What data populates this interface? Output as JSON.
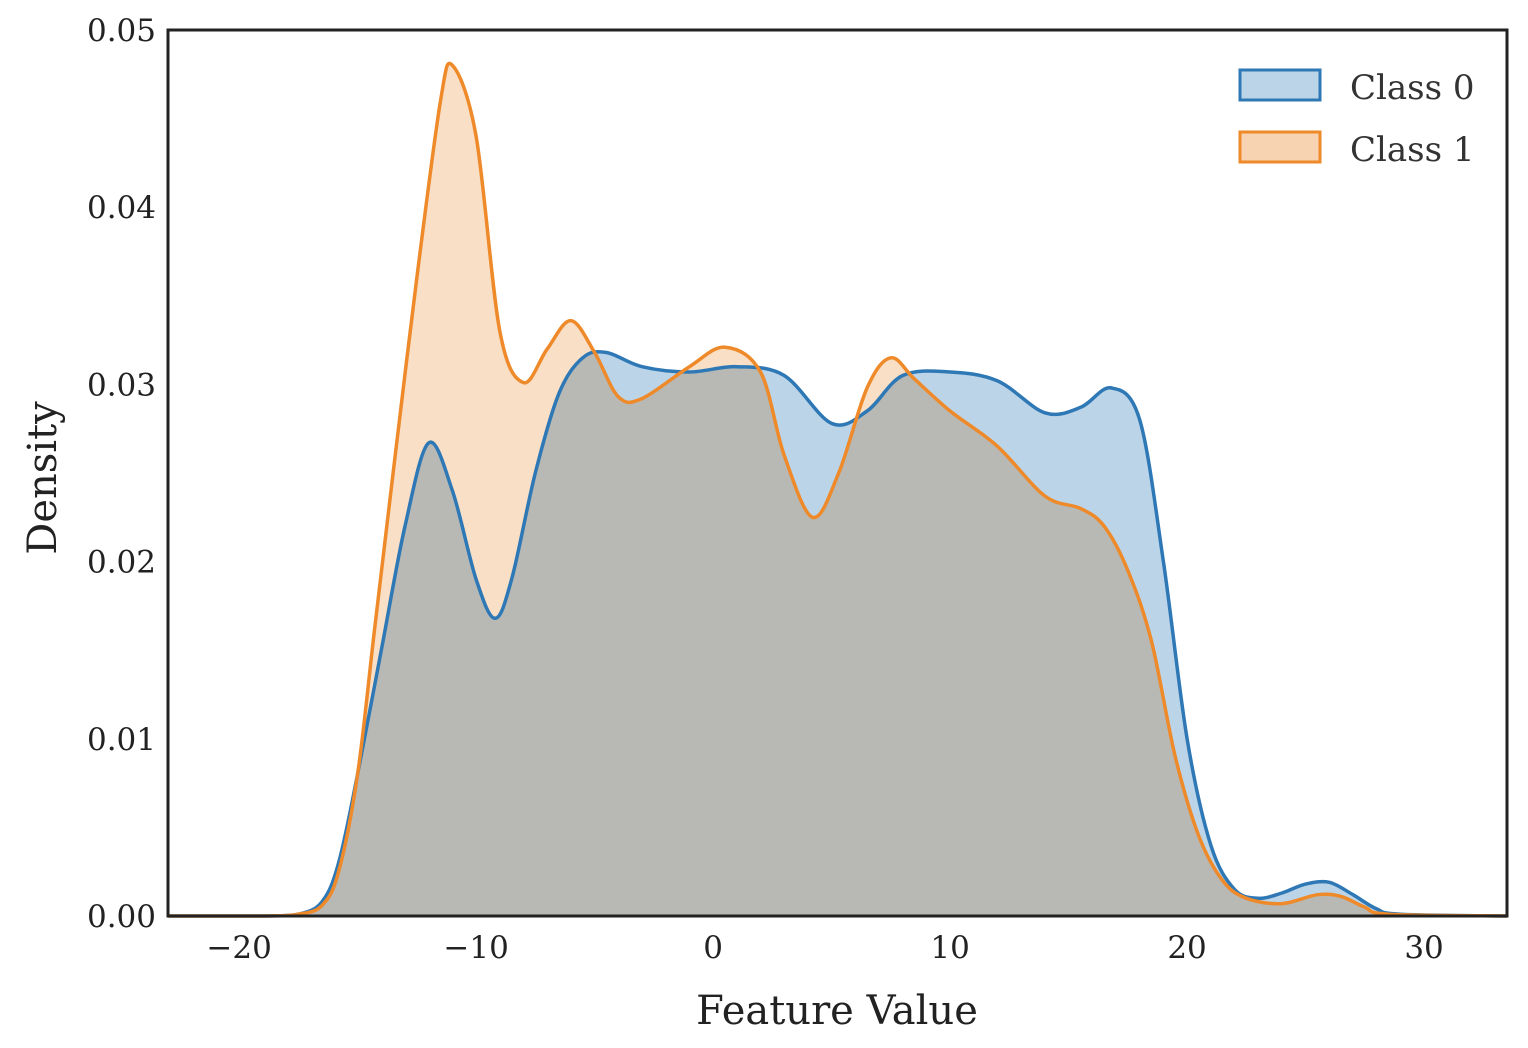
{
  "chart_data": {
    "type": "area",
    "title": "",
    "xlabel": "Feature Value",
    "ylabel": "Density",
    "xlim": [
      -23,
      33.5
    ],
    "ylim": [
      0,
      0.05
    ],
    "xticks": [
      -20,
      -10,
      0,
      10,
      20,
      30
    ],
    "xtick_labels": [
      "−20",
      "−10",
      "0",
      "10",
      "20",
      "30"
    ],
    "yticks": [
      0,
      0.01,
      0.02,
      0.03,
      0.04,
      0.05
    ],
    "ytick_labels": [
      "0.00",
      "0.01",
      "0.02",
      "0.03",
      "0.04",
      "0.05"
    ],
    "grid": false,
    "legend": {
      "position": "top-right"
    },
    "series": [
      {
        "name": "Class 0",
        "line_color": "#2e78b5",
        "fill_color": "#bcd4e8",
        "points": [
          [
            -23,
            0
          ],
          [
            -19,
            0
          ],
          [
            -17.5,
            0.0001
          ],
          [
            -16.5,
            0.0008
          ],
          [
            -15.8,
            0.003
          ],
          [
            -15,
            0.008
          ],
          [
            -14,
            0.015
          ],
          [
            -13,
            0.022
          ],
          [
            -12,
            0.0267
          ],
          [
            -11,
            0.024
          ],
          [
            -10,
            0.019
          ],
          [
            -9.2,
            0.0168
          ],
          [
            -8.5,
            0.019
          ],
          [
            -7.5,
            0.025
          ],
          [
            -6.5,
            0.0295
          ],
          [
            -5.5,
            0.0315
          ],
          [
            -4.5,
            0.0318
          ],
          [
            -3,
            0.031
          ],
          [
            -1,
            0.0307
          ],
          [
            1,
            0.031
          ],
          [
            3,
            0.0305
          ],
          [
            5,
            0.0278
          ],
          [
            6.5,
            0.0285
          ],
          [
            8,
            0.0305
          ],
          [
            10,
            0.0307
          ],
          [
            12,
            0.0302
          ],
          [
            14,
            0.0284
          ],
          [
            15.5,
            0.0287
          ],
          [
            16.8,
            0.0298
          ],
          [
            18,
            0.028
          ],
          [
            19,
            0.02
          ],
          [
            20,
            0.01
          ],
          [
            21,
            0.004
          ],
          [
            22,
            0.0015
          ],
          [
            23,
            0.001
          ],
          [
            24,
            0.0013
          ],
          [
            25,
            0.0018
          ],
          [
            26,
            0.0019
          ],
          [
            27,
            0.0012
          ],
          [
            28,
            0.0004
          ],
          [
            29,
            0.0001
          ],
          [
            33.5,
            0
          ]
        ]
      },
      {
        "name": "Class 1",
        "line_color": "#ee8a2a",
        "fill_color": "#f8d3b2",
        "points": [
          [
            -23,
            0
          ],
          [
            -19,
            0
          ],
          [
            -17.5,
            0.0001
          ],
          [
            -16.5,
            0.0006
          ],
          [
            -15.8,
            0.0025
          ],
          [
            -15,
            0.008
          ],
          [
            -14.3,
            0.016
          ],
          [
            -13.5,
            0.025
          ],
          [
            -12.5,
            0.036
          ],
          [
            -11.5,
            0.046
          ],
          [
            -11,
            0.048
          ],
          [
            -10,
            0.044
          ],
          [
            -9,
            0.033
          ],
          [
            -8,
            0.0301
          ],
          [
            -7,
            0.032
          ],
          [
            -6,
            0.0336
          ],
          [
            -5,
            0.0318
          ],
          [
            -4,
            0.0293
          ],
          [
            -3,
            0.0292
          ],
          [
            -1,
            0.031
          ],
          [
            0.5,
            0.0321
          ],
          [
            2,
            0.0307
          ],
          [
            3,
            0.026
          ],
          [
            4.2,
            0.0225
          ],
          [
            5.3,
            0.025
          ],
          [
            6.5,
            0.0298
          ],
          [
            7.5,
            0.0315
          ],
          [
            8.5,
            0.0303
          ],
          [
            10,
            0.0285
          ],
          [
            12,
            0.0265
          ],
          [
            14,
            0.0237
          ],
          [
            15.5,
            0.023
          ],
          [
            16.5,
            0.022
          ],
          [
            17.5,
            0.0195
          ],
          [
            18.5,
            0.0155
          ],
          [
            19.5,
            0.009
          ],
          [
            20.5,
            0.0045
          ],
          [
            21.5,
            0.002
          ],
          [
            22.5,
            0.001
          ],
          [
            24,
            0.0007
          ],
          [
            25.5,
            0.0012
          ],
          [
            26.5,
            0.0011
          ],
          [
            27.5,
            0.0005
          ],
          [
            28.5,
            0.0001
          ],
          [
            33.5,
            0
          ]
        ]
      }
    ]
  }
}
